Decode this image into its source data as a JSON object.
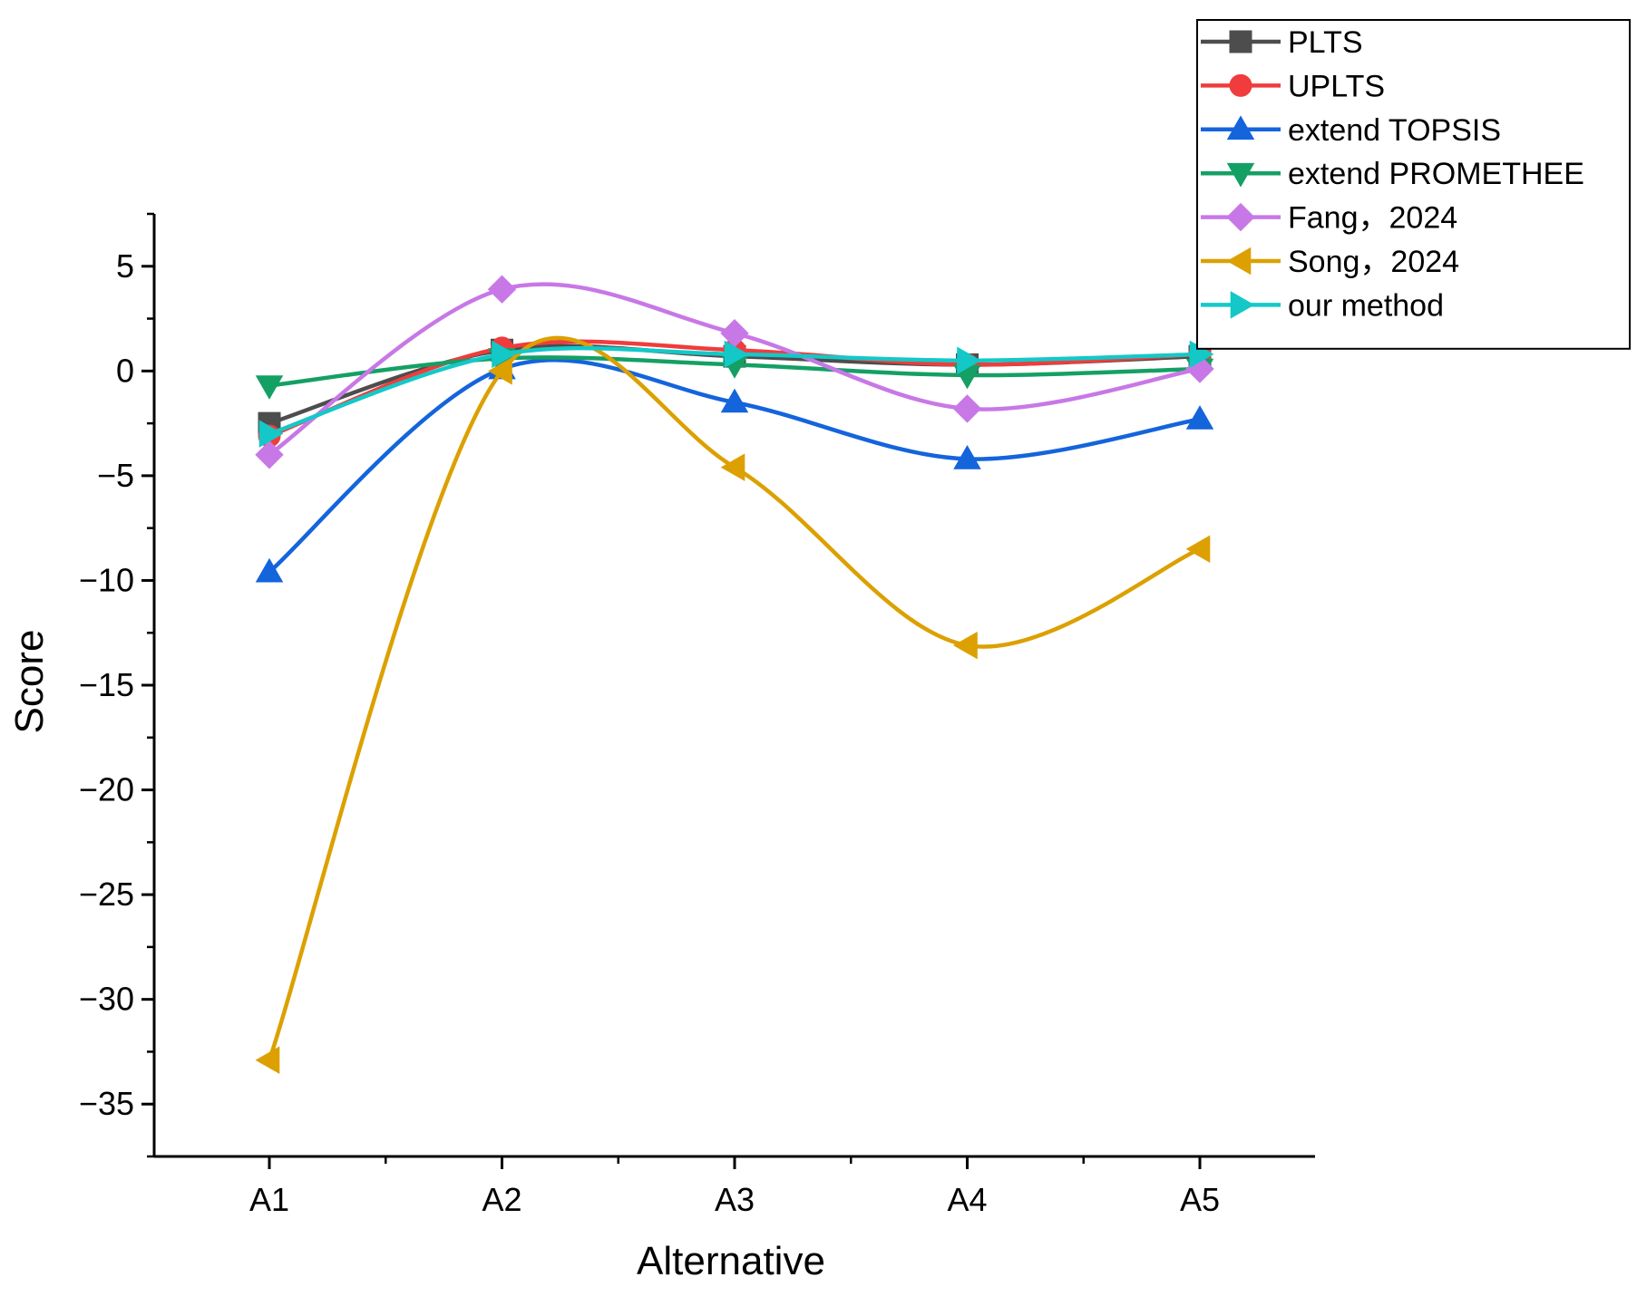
{
  "chart_data": {
    "type": "line",
    "smooth": true,
    "title": "",
    "xlabel": "Alternative",
    "ylabel": "Score",
    "categories": [
      "A1",
      "A2",
      "A3",
      "A4",
      "A5"
    ],
    "ylim": [
      -37.5,
      7.5
    ],
    "yticks": [
      5,
      0,
      -5,
      -10,
      -15,
      -20,
      -25,
      -30,
      -35
    ],
    "ytick_labels": [
      "5",
      "0",
      "−5",
      "−10",
      "−15",
      "−20",
      "−25",
      "−30",
      "−35"
    ],
    "grid": false,
    "legend_position": "top-right",
    "series": [
      {
        "name": "PLTS",
        "color": "#4d4d4d",
        "marker": "square",
        "values": [
          -2.5,
          1.0,
          0.7,
          0.3,
          0.7
        ]
      },
      {
        "name": "UPLTS",
        "color": "#f03c3c",
        "marker": "circle",
        "values": [
          -3.1,
          1.1,
          1.0,
          0.3,
          0.8
        ]
      },
      {
        "name": "extend TOPSIS",
        "color": "#1464dc",
        "marker": "triangle-up",
        "values": [
          -9.6,
          0.1,
          -1.5,
          -4.2,
          -2.3
        ]
      },
      {
        "name": "extend PROMETHEE",
        "color": "#14a064",
        "marker": "triangle-down",
        "values": [
          -0.7,
          0.6,
          0.3,
          -0.2,
          0.1
        ]
      },
      {
        "name": "Fang，2024",
        "color": "#c878e6",
        "marker": "diamond",
        "values": [
          -4.0,
          3.9,
          1.8,
          -1.8,
          0.1
        ]
      },
      {
        "name": "Song，2024",
        "color": "#dca000",
        "marker": "triangle-left",
        "values": [
          -32.9,
          0.0,
          -4.6,
          -13.1,
          -8.5
        ]
      },
      {
        "name": "our method",
        "color": "#14c8c8",
        "marker": "triangle-right",
        "values": [
          -3.0,
          0.8,
          0.8,
          0.5,
          0.8
        ]
      }
    ]
  }
}
